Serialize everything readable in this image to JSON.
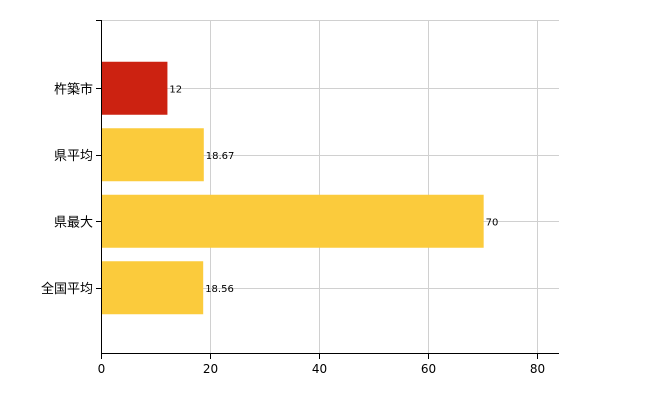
{
  "chart_data": {
    "type": "bar",
    "orientation": "horizontal",
    "categories": [
      "杵築市",
      "県平均",
      "県最大",
      "全国平均"
    ],
    "values": [
      12,
      18.67,
      70,
      18.56
    ],
    "data_labels": [
      "12",
      "18.67",
      "70",
      "18.56"
    ],
    "colors": [
      "#cc2211",
      "#fbcb3c",
      "#fbcb3c",
      "#fbcb3c"
    ],
    "xlim": [
      0,
      84
    ],
    "xticks": [
      0,
      20,
      40,
      60,
      80
    ],
    "grid": true,
    "legend": "none",
    "title": "",
    "xlabel": "",
    "ylabel": ""
  }
}
